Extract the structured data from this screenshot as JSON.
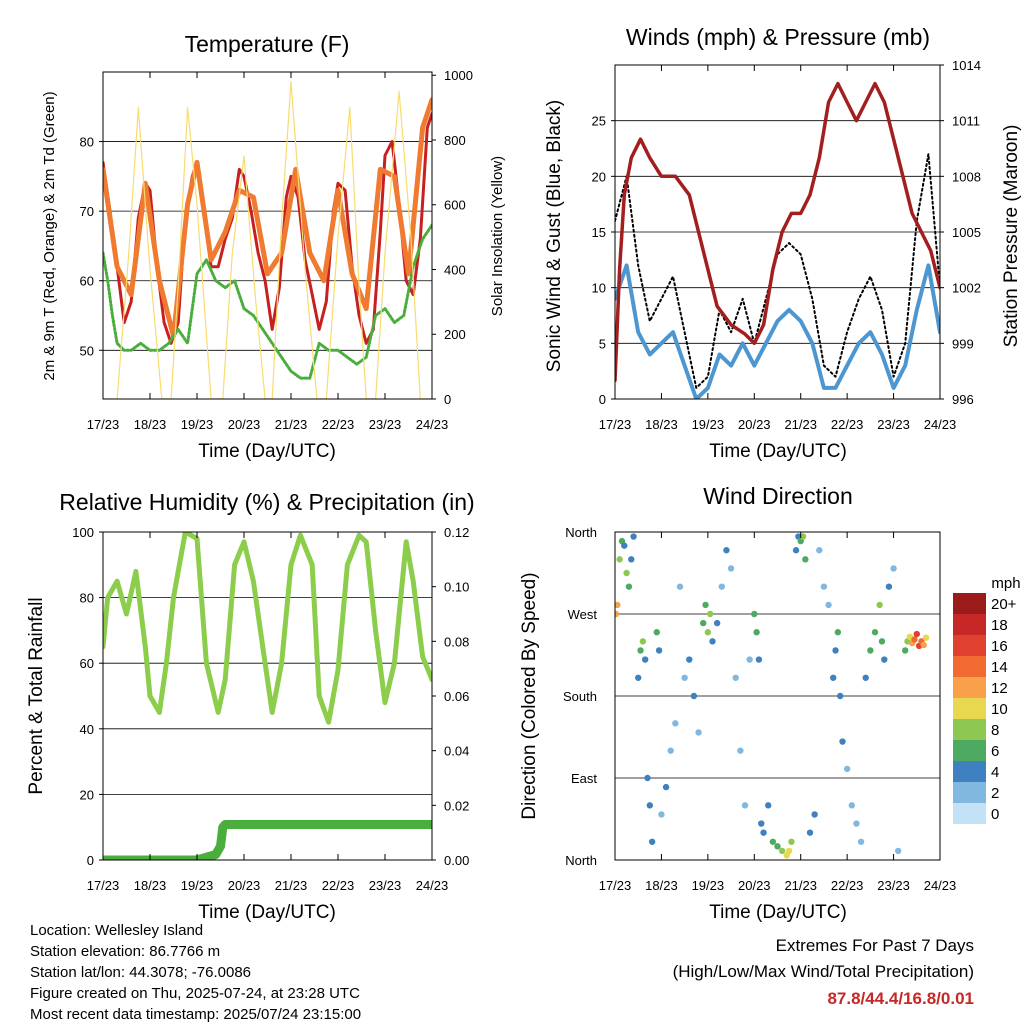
{
  "x_ticks": [
    "17/23",
    "18/23",
    "19/23",
    "20/23",
    "21/23",
    "22/23",
    "23/23",
    "24/23"
  ],
  "colors": {
    "temp_red": "#c62020",
    "temp_orange": "#f07a30",
    "dew_green": "#4aae3c",
    "solar_yellow": "#f8dc70",
    "wind_blue": "#4d96d0",
    "gust_black": "#000000",
    "pressure_maroon": "#a31f1f",
    "rh_green": "#8ccd4c",
    "precip_green": "#4aae3c"
  },
  "chart_data": [
    {
      "id": "temperature",
      "type": "line",
      "title": "Temperature (F)",
      "xlabel": "Time (Day/UTC)",
      "ylabel": "2m & 9m T (Red, Orange) & 2m Td (Green)",
      "y2label": "Solar Insolation (Yellow)",
      "ylim": [
        43,
        90
      ],
      "y2lim": [
        0,
        1010
      ],
      "yticks": [
        50,
        60,
        70,
        80
      ],
      "y2ticks": [
        0,
        200,
        400,
        600,
        800,
        1000
      ],
      "series": [
        {
          "color": "temp_red",
          "axis": "left",
          "x": [
            0,
            0.15,
            0.3,
            0.45,
            0.6,
            0.75,
            0.9,
            1.0,
            1.15,
            1.3,
            1.45,
            1.6,
            1.75,
            1.9,
            2.0,
            2.15,
            2.3,
            2.45,
            2.6,
            2.75,
            2.9,
            3.0,
            3.15,
            3.3,
            3.45,
            3.6,
            3.75,
            3.9,
            4.0,
            4.15,
            4.3,
            4.45,
            4.6,
            4.75,
            4.9,
            5.0,
            5.15,
            5.3,
            5.45,
            5.6,
            5.75,
            5.9,
            6.0,
            6.15,
            6.3,
            6.45,
            6.6,
            6.75,
            6.9,
            7.0
          ],
          "y": [
            77,
            70,
            62,
            54,
            57,
            69,
            74,
            73,
            62,
            54,
            51,
            54,
            69,
            75,
            77,
            70,
            62,
            62,
            66,
            69,
            76,
            75,
            70,
            64,
            60,
            53,
            59,
            72,
            75,
            72,
            63,
            58,
            53,
            57,
            70,
            74,
            73,
            62,
            55,
            51,
            53,
            67,
            78,
            80,
            71,
            60,
            58,
            66,
            82,
            84
          ]
        },
        {
          "color": "temp_orange",
          "axis": "left",
          "x": [
            0,
            0.3,
            0.6,
            0.9,
            1.2,
            1.5,
            1.8,
            2.0,
            2.3,
            2.6,
            2.9,
            3.2,
            3.5,
            3.8,
            4.1,
            4.4,
            4.7,
            5.0,
            5.3,
            5.6,
            5.9,
            6.2,
            6.5,
            6.8,
            7.0
          ],
          "y": [
            76,
            62,
            58,
            74,
            60,
            52,
            71,
            77,
            63,
            67,
            73,
            72,
            61,
            64,
            76,
            64,
            60,
            73,
            61,
            56,
            76,
            75,
            61,
            82,
            86
          ]
        },
        {
          "color": "dew_green",
          "axis": "left",
          "x": [
            0,
            0.1,
            0.2,
            0.3,
            0.45,
            0.6,
            0.8,
            1.0,
            1.2,
            1.4,
            1.6,
            1.8,
            2.0,
            2.2,
            2.4,
            2.6,
            2.8,
            3.0,
            3.2,
            3.4,
            3.6,
            3.8,
            4.0,
            4.2,
            4.4,
            4.6,
            4.8,
            5.0,
            5.2,
            5.4,
            5.6,
            5.8,
            6.0,
            6.2,
            6.4,
            6.6,
            6.8,
            7.0
          ],
          "y": [
            64,
            60,
            55,
            51,
            50,
            50,
            51,
            50,
            50,
            51,
            53,
            51,
            61,
            63,
            60,
            59,
            60,
            56,
            55,
            53,
            51,
            49,
            47,
            46,
            46,
            51,
            50,
            50,
            49,
            48,
            49,
            55,
            56,
            54,
            55,
            62,
            66,
            68
          ]
        },
        {
          "color": "solar_yellow",
          "axis": "right",
          "x": [
            0,
            0.3,
            0.55,
            0.75,
            1.0,
            1.25,
            1.45,
            1.6,
            1.8,
            2.0,
            2.3,
            2.55,
            2.75,
            3.0,
            3.25,
            3.45,
            3.6,
            3.8,
            4.0,
            4.3,
            4.55,
            4.75,
            5.0,
            5.25,
            5.45,
            5.6,
            5.8,
            6.0,
            6.3,
            6.55,
            6.75,
            7.0
          ],
          "y": [
            0,
            0,
            450,
            900,
            400,
            0,
            0,
            350,
            900,
            600,
            0,
            0,
            450,
            750,
            300,
            0,
            0,
            550,
            980,
            400,
            0,
            0,
            500,
            900,
            350,
            0,
            0,
            450,
            950,
            500,
            0,
            0
          ]
        }
      ]
    },
    {
      "id": "winds",
      "type": "line",
      "title": "Winds (mph) & Pressure (mb)",
      "xlabel": "Time (Day/UTC)",
      "ylabel": "Sonic Wind & Gust (Blue, Black)",
      "y2label": "Station Pressure (Maroon)",
      "ylim": [
        0,
        30
      ],
      "y2lim": [
        996,
        1014
      ],
      "yticks": [
        0,
        5,
        10,
        15,
        20,
        25
      ],
      "y2ticks": [
        996,
        999,
        1002,
        1005,
        1008,
        1011,
        1014
      ],
      "series": [
        {
          "color": "gust_black",
          "axis": "left",
          "x": [
            0,
            0.25,
            0.5,
            0.75,
            1.0,
            1.25,
            1.5,
            1.75,
            2.0,
            2.25,
            2.5,
            2.75,
            3.0,
            3.25,
            3.5,
            3.75,
            4.0,
            4.25,
            4.5,
            4.75,
            5.0,
            5.25,
            5.5,
            5.75,
            6.0,
            6.25,
            6.5,
            6.75,
            7.0
          ],
          "y": [
            16,
            20,
            12,
            7,
            9,
            11,
            6,
            1,
            2,
            8,
            6,
            9,
            5,
            9,
            13,
            14,
            13,
            9,
            3,
            2,
            6,
            9,
            11,
            8,
            2,
            5,
            16,
            22,
            10
          ]
        },
        {
          "color": "wind_blue",
          "axis": "left",
          "x": [
            0,
            0.25,
            0.5,
            0.75,
            1.0,
            1.25,
            1.5,
            1.75,
            2.0,
            2.25,
            2.5,
            2.75,
            3.0,
            3.25,
            3.5,
            3.75,
            4.0,
            4.25,
            4.5,
            4.75,
            5.0,
            5.25,
            5.5,
            5.75,
            6.0,
            6.25,
            6.5,
            6.75,
            7.0
          ],
          "y": [
            9,
            12,
            6,
            4,
            5,
            6,
            3,
            0,
            1,
            4,
            3,
            5,
            3,
            5,
            7,
            8,
            7,
            5,
            1,
            1,
            3,
            5,
            6,
            4,
            1,
            3,
            8,
            12,
            6
          ]
        },
        {
          "color": "pressure_maroon",
          "axis": "right",
          "x": [
            0,
            0.1,
            0.2,
            0.35,
            0.55,
            0.75,
            1.0,
            1.3,
            1.6,
            1.9,
            2.2,
            2.5,
            2.8,
            3.0,
            3.2,
            3.4,
            3.6,
            3.8,
            4.0,
            4.2,
            4.4,
            4.6,
            4.8,
            5.0,
            5.2,
            5.4,
            5.6,
            5.8,
            6.0,
            6.2,
            6.4,
            6.6,
            6.8,
            7.0
          ],
          "y": [
            997,
            1003,
            1007,
            1009,
            1010,
            1009,
            1008,
            1008,
            1007,
            1004,
            1001,
            1000,
            999.5,
            999,
            1000,
            1003,
            1005,
            1006,
            1006,
            1007,
            1009,
            1012,
            1013,
            1012,
            1011,
            1012,
            1013,
            1012,
            1010,
            1008,
            1006,
            1005,
            1004,
            1002
          ]
        }
      ]
    },
    {
      "id": "humidity",
      "type": "line",
      "title": "Relative Humidity (%) & Precipitation (in)",
      "xlabel": "Time (Day/UTC)",
      "ylabel": "Percent & Total Rainfall",
      "ylim": [
        0,
        100
      ],
      "y2lim": [
        0,
        0.12
      ],
      "yticks": [
        0,
        20,
        40,
        60,
        80,
        100
      ],
      "y2ticks": [
        "0.00",
        "0.02",
        "0.04",
        "0.06",
        "0.08",
        "0.10",
        "0.12"
      ],
      "series": [
        {
          "color": "rh_green",
          "axis": "left",
          "x": [
            0,
            0.1,
            0.3,
            0.5,
            0.7,
            0.9,
            1.0,
            1.2,
            1.35,
            1.5,
            1.75,
            2.0,
            2.2,
            2.45,
            2.6,
            2.8,
            3.0,
            3.2,
            3.45,
            3.6,
            3.8,
            4.0,
            4.2,
            4.45,
            4.6,
            4.8,
            5.0,
            5.2,
            5.45,
            5.6,
            5.8,
            6.0,
            6.2,
            6.45,
            6.6,
            6.8,
            7.0
          ],
          "y": [
            65,
            80,
            85,
            75,
            88,
            65,
            50,
            45,
            60,
            80,
            100,
            98,
            60,
            45,
            55,
            90,
            97,
            85,
            60,
            45,
            60,
            90,
            99,
            90,
            50,
            42,
            58,
            90,
            99,
            97,
            70,
            48,
            60,
            97,
            85,
            62,
            55
          ]
        },
        {
          "color": "precip_green",
          "axis": "right",
          "x": [
            0,
            1.0,
            2.0,
            2.4,
            2.5,
            2.55,
            2.6,
            7.0
          ],
          "y": [
            0,
            0,
            0,
            0.002,
            0.005,
            0.012,
            0.013,
            0.013
          ]
        }
      ]
    },
    {
      "id": "direction",
      "type": "scatter",
      "title": "Wind Direction",
      "xlabel": "Time (Day/UTC)",
      "ylabel": "Direction (Colored By Speed)",
      "ytick_labels": [
        "North",
        "East",
        "South",
        "West",
        "North"
      ],
      "ylim": [
        0,
        360
      ],
      "legend_title": "mph",
      "legend_labels": [
        "20+",
        "18",
        "16",
        "14",
        "12",
        "10",
        "8",
        "6",
        "4",
        "2",
        "0"
      ],
      "legend_colors": [
        "#9b1a1a",
        "#c62828",
        "#e04030",
        "#f06a32",
        "#f8a04a",
        "#e8d850",
        "#8ec852",
        "#4eaa60",
        "#3f80c0",
        "#80b8e0",
        "#c4e2f6"
      ],
      "points": [
        [
          0.02,
          270,
          12
        ],
        [
          0.05,
          280,
          11
        ],
        [
          0.1,
          330,
          8
        ],
        [
          0.15,
          350,
          6
        ],
        [
          0.2,
          345,
          4
        ],
        [
          0.25,
          315,
          8
        ],
        [
          0.3,
          300,
          6
        ],
        [
          0.35,
          330,
          4
        ],
        [
          0.4,
          355,
          3
        ],
        [
          0.5,
          200,
          3
        ],
        [
          0.55,
          230,
          6
        ],
        [
          0.6,
          240,
          8
        ],
        [
          0.65,
          220,
          4
        ],
        [
          0.7,
          90,
          3
        ],
        [
          0.75,
          60,
          4
        ],
        [
          0.8,
          20,
          3
        ],
        [
          0.9,
          250,
          6
        ],
        [
          0.95,
          230,
          4
        ],
        [
          1.0,
          50,
          2
        ],
        [
          1.1,
          80,
          3
        ],
        [
          1.2,
          120,
          1
        ],
        [
          1.3,
          150,
          2
        ],
        [
          1.4,
          300,
          2
        ],
        [
          1.5,
          200,
          2
        ],
        [
          1.6,
          220,
          3
        ],
        [
          1.7,
          180,
          3
        ],
        [
          1.8,
          140,
          2
        ],
        [
          1.9,
          260,
          5
        ],
        [
          1.95,
          280,
          6
        ],
        [
          2.0,
          250,
          8
        ],
        [
          2.05,
          270,
          7
        ],
        [
          2.1,
          240,
          4
        ],
        [
          2.2,
          260,
          3
        ],
        [
          2.3,
          300,
          2
        ],
        [
          2.4,
          340,
          3
        ],
        [
          2.5,
          320,
          2
        ],
        [
          2.6,
          200,
          2
        ],
        [
          2.7,
          120,
          2
        ],
        [
          2.8,
          60,
          1
        ],
        [
          2.9,
          220,
          2
        ],
        [
          3.0,
          270,
          6
        ],
        [
          3.05,
          250,
          5
        ],
        [
          3.1,
          220,
          4
        ],
        [
          3.15,
          40,
          4
        ],
        [
          3.2,
          30,
          3
        ],
        [
          3.3,
          60,
          4
        ],
        [
          3.4,
          20,
          5
        ],
        [
          3.5,
          15,
          6
        ],
        [
          3.6,
          10,
          8
        ],
        [
          3.7,
          5,
          10
        ],
        [
          3.75,
          10,
          9
        ],
        [
          3.8,
          20,
          7
        ],
        [
          3.9,
          340,
          4
        ],
        [
          3.95,
          355,
          3
        ],
        [
          4.0,
          350,
          6
        ],
        [
          4.05,
          355,
          8
        ],
        [
          4.1,
          330,
          6
        ],
        [
          4.2,
          30,
          4
        ],
        [
          4.3,
          50,
          3
        ],
        [
          4.4,
          340,
          1
        ],
        [
          4.5,
          300,
          2
        ],
        [
          4.6,
          280,
          1
        ],
        [
          4.7,
          200,
          3
        ],
        [
          4.75,
          230,
          4
        ],
        [
          4.8,
          250,
          5
        ],
        [
          4.85,
          180,
          4
        ],
        [
          4.9,
          130,
          3
        ],
        [
          5.0,
          100,
          2
        ],
        [
          5.1,
          60,
          2
        ],
        [
          5.2,
          40,
          1
        ],
        [
          5.3,
          20,
          1
        ],
        [
          5.4,
          200,
          3
        ],
        [
          5.5,
          230,
          5
        ],
        [
          5.6,
          250,
          6
        ],
        [
          5.7,
          280,
          8
        ],
        [
          5.75,
          240,
          6
        ],
        [
          5.8,
          220,
          4
        ],
        [
          5.9,
          300,
          3
        ],
        [
          6.0,
          320,
          1
        ],
        [
          6.1,
          10,
          2
        ],
        [
          6.25,
          230,
          5
        ],
        [
          6.3,
          240,
          7
        ],
        [
          6.35,
          245,
          10
        ],
        [
          6.4,
          238,
          12
        ],
        [
          6.45,
          242,
          14
        ],
        [
          6.5,
          248,
          15
        ],
        [
          6.55,
          235,
          16
        ],
        [
          6.6,
          240,
          13
        ],
        [
          6.65,
          236,
          11
        ],
        [
          6.7,
          244,
          9
        ]
      ]
    }
  ],
  "info": {
    "location": "Location: Wellesley Island",
    "elevation": "Station elevation: 86.7766 m",
    "latlon": "Station lat/lon: 44.3078; -76.0086",
    "created": "Figure created on Thu, 2025-07-24, at 23:28 UTC",
    "recent": "Most recent data timestamp: 2025/07/24 23:15:00"
  },
  "extremes": {
    "heading": "Extremes For Past 7 Days",
    "subheading": "(High/Low/Max Wind/Total Precipitation)",
    "values": "87.8/44.4/16.8/0.01"
  }
}
